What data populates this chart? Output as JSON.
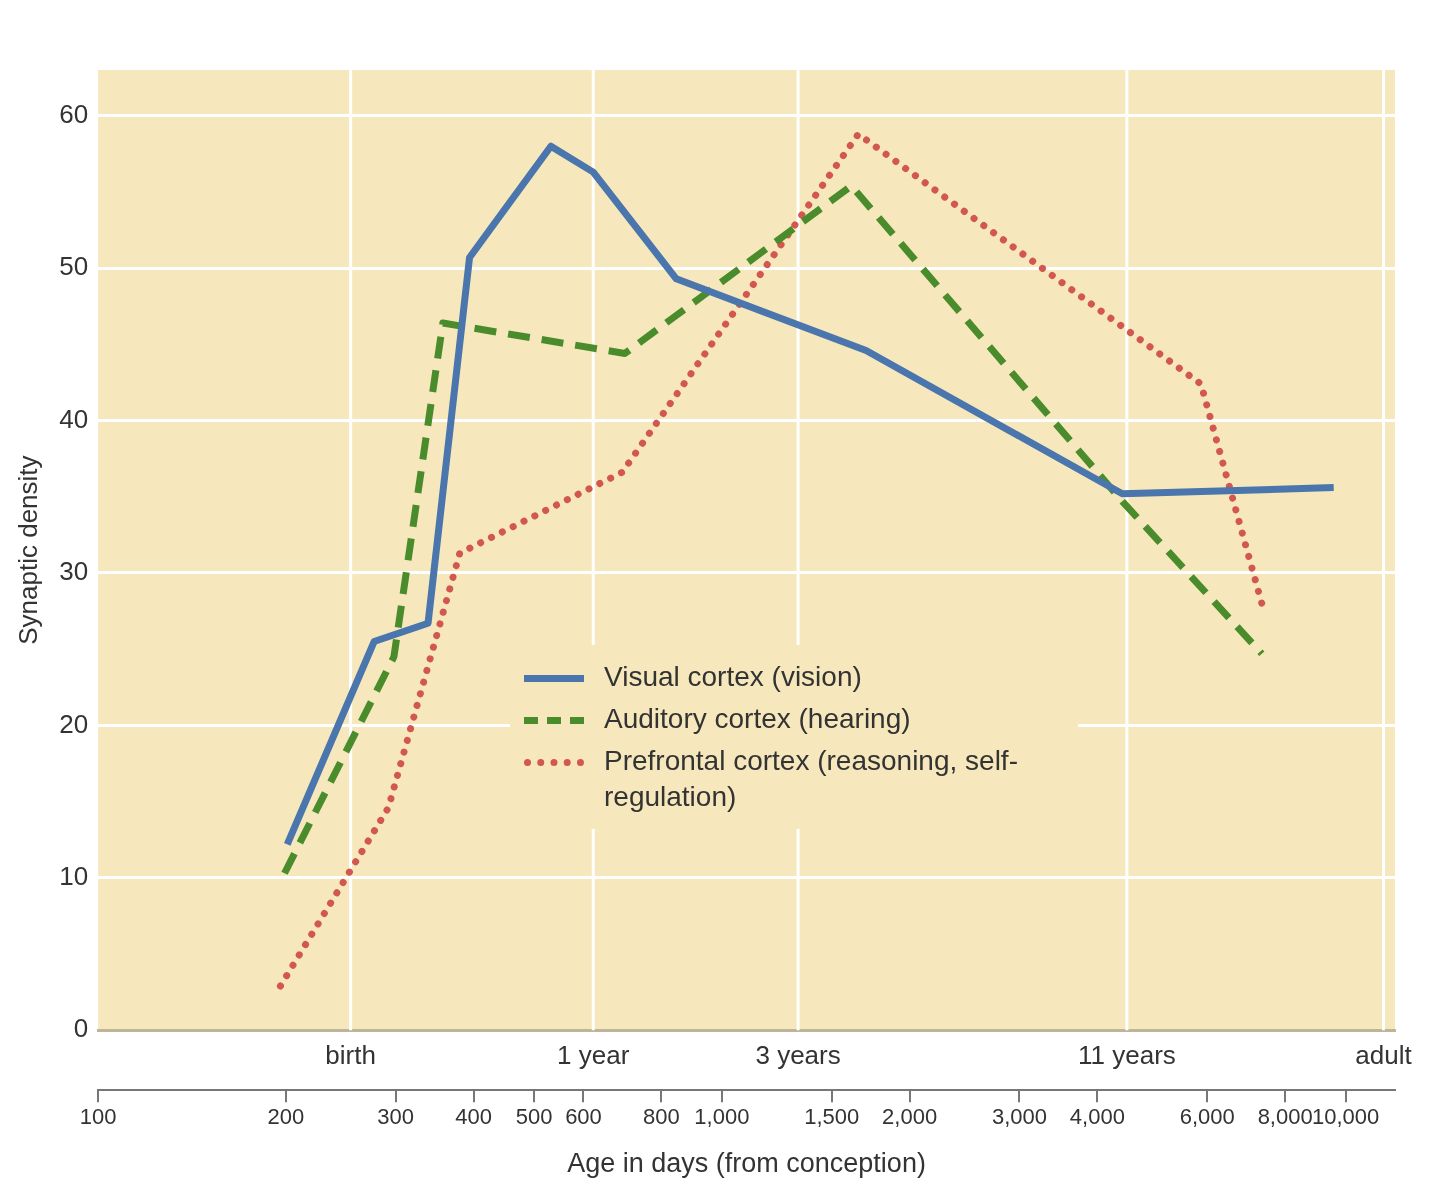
{
  "chart_data": {
    "type": "line",
    "xlabel": "Age in days (from conception)",
    "ylabel": "Synaptic density",
    "log": "x",
    "xlim": [
      100,
      12000
    ],
    "xticks": [
      100,
      200,
      300,
      400,
      500,
      600,
      800,
      {
        "value": 1000,
        "label": "1,000"
      },
      {
        "value": 1500,
        "label": "1,500"
      },
      {
        "value": 2000,
        "label": "2,000"
      },
      {
        "value": 3000,
        "label": "3,000"
      },
      {
        "value": 4000,
        "label": "4,000"
      },
      {
        "value": 6000,
        "label": "6,000"
      },
      {
        "value": 8000,
        "label": "8,000"
      },
      {
        "value": 10000,
        "label": "10,000"
      }
    ],
    "ref_lines": [
      {
        "axis": "x",
        "value": 254,
        "label": "birth",
        "color": "#ffffff"
      },
      {
        "axis": "x",
        "value": 622,
        "label": "1 year",
        "color": "#ffffff"
      },
      {
        "axis": "x",
        "value": 1325,
        "label": "3 years",
        "color": "#ffffff"
      },
      {
        "axis": "x",
        "value": 4460,
        "label": "11 years",
        "color": "#ffffff"
      },
      {
        "axis": "x",
        "value": 11500,
        "label": "adult",
        "color": "#ffffff"
      }
    ],
    "ylim": [
      0,
      63
    ],
    "yticks": [
      0,
      10,
      20,
      30,
      40,
      50,
      60
    ],
    "grid": true,
    "legend": "bottom",
    "marker": "none",
    "series": [
      {
        "name": "Visual cortex (vision)",
        "color": "#4a76ad",
        "line_style": "solid",
        "x": [
          201,
          277,
          338,
          394,
          532,
          622,
          845,
          1703,
          4385,
          9570
        ],
        "values": [
          12.2,
          25.5,
          26.7,
          50.7,
          58.0,
          56.3,
          49.3,
          44.6,
          35.2,
          35.6
        ]
      },
      {
        "name": "Auditory cortex (hearing)",
        "color": "#4a8c2c",
        "line_style": "dashed",
        "x": [
          199,
          298,
          357,
          699,
          1613,
          4385,
          7340
        ],
        "values": [
          10.3,
          24.5,
          46.4,
          44.4,
          55.4,
          34.7,
          24.7
        ]
      },
      {
        "name": "Prefrontal cortex (reasoning, self-regulation)",
        "color": "#d2574f",
        "line_style": "dotted",
        "x": [
          196,
          292,
          380,
          692,
          1655,
          5862,
          7350
        ],
        "values": [
          2.9,
          14.6,
          31.3,
          36.6,
          58.8,
          42.4,
          27.9
        ]
      }
    ]
  }
}
